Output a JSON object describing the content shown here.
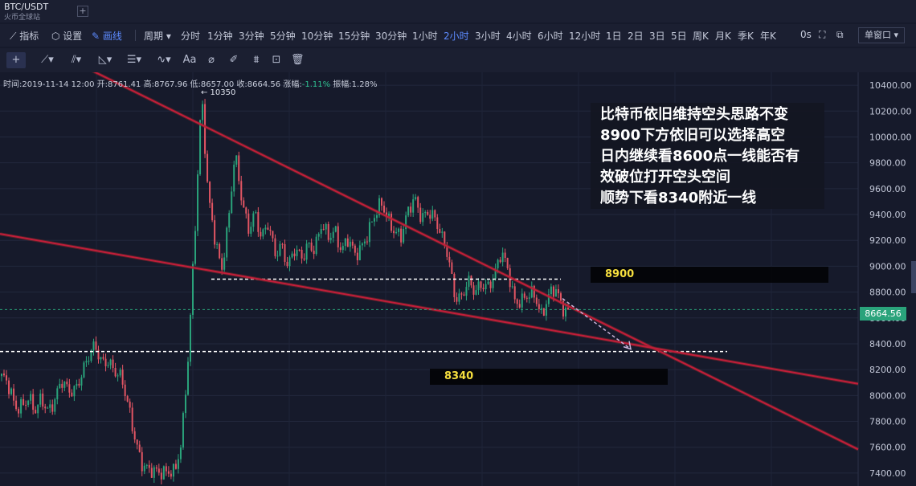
{
  "header": {
    "symbol": "BTC/USDT",
    "exchange": "火币全球站",
    "add_icon": "+"
  },
  "toolbar": {
    "indicator": "指标",
    "settings": "设置",
    "draw": "画线",
    "period": "周期",
    "intervals": [
      "分时",
      "1分钟",
      "3分钟",
      "5分钟",
      "10分钟",
      "15分钟",
      "30分钟",
      "1小时",
      "2小时",
      "3小时",
      "4小时",
      "6小时",
      "12小时",
      "1日",
      "2日",
      "3日",
      "5日",
      "周K",
      "月K",
      "季K",
      "年K"
    ],
    "active_interval": "2小时",
    "countdown": "0s",
    "window_mode": "单窗口"
  },
  "drawing_tools": [
    "crosshair-icon",
    "line-icon",
    "channel-icon",
    "fib-icon",
    "horizontal-icon",
    "wave-icon",
    "text-icon",
    "ruler-icon",
    "brush-icon",
    "pattern-icon",
    "lock-icon",
    "trash-icon"
  ],
  "drawing_text_tool": "Aa",
  "ohlc_info": {
    "time": "时间:2019-11-14 12:00",
    "open": "开:8761.41",
    "high": "高:8767.96",
    "low": "低:8657.00",
    "close": "收:8664.56",
    "change_label": "涨幅:",
    "change": "-1.11%",
    "amplitude": "振幅:1.28%"
  },
  "annotation": {
    "lines": [
      "比特币依旧维持空头思路不变",
      "8900下方依旧可以选择高空",
      "日内继续看8600点一线能否有",
      "效破位打开空头空间",
      "顺势下看8340附近一线"
    ]
  },
  "labels": {
    "upper_level": "8900",
    "lower_level": "8340",
    "peak": "← 10350"
  },
  "current_price": "8664.56",
  "colors": {
    "background": "#161a2b",
    "up": "#2aa37b",
    "down": "#e25563",
    "trendline": "#c21d3a",
    "tagline": "#f6df3e"
  },
  "chart_data": {
    "type": "candlestick",
    "symbol": "BTC/USDT",
    "interval": "2小时",
    "ylim": [
      7300,
      10500
    ],
    "yticks": [
      7400,
      7600,
      7800,
      8000,
      8200,
      8400,
      8600,
      8800,
      9000,
      9200,
      9400,
      9600,
      9800,
      10000,
      10200,
      10400
    ],
    "price_path": [
      8150,
      8050,
      7900,
      7950,
      8000,
      7850,
      7950,
      7900,
      8000,
      8100,
      8000,
      8050,
      8200,
      8300,
      8350,
      8250,
      8300,
      8200,
      8100,
      7900,
      7700,
      7500,
      7400,
      7380,
      7420,
      7450,
      7400,
      7600,
      8300,
      9300,
      10350,
      9500,
      9200,
      9000,
      9350,
      9850,
      9500,
      9300,
      9450,
      9200,
      9300,
      9100,
      9200,
      9000,
      9100,
      9050,
      9200,
      9150,
      9300,
      9200,
      9300,
      9150,
      9200,
      9050,
      9150,
      9300,
      9400,
      9450,
      9350,
      9300,
      9250,
      9400,
      9500,
      9400,
      9450,
      9350,
      9200,
      9100,
      8800,
      8750,
      8850,
      8800,
      8900,
      8850,
      8900,
      9100,
      9000,
      8750,
      8700,
      8750,
      8800,
      8650,
      8750,
      8800,
      8700,
      8665
    ],
    "peak_label": 10350,
    "last_price": 8664.56,
    "horizontal_levels": [
      {
        "price": 8900,
        "label": "8900"
      },
      {
        "price": 8340,
        "label": "8340"
      }
    ],
    "trend_lines": [
      {
        "points": [
          [
            0.105,
            10520
          ],
          [
            0.94,
            7780
          ]
        ]
      },
      {
        "points": [
          [
            0.0,
            9250
          ],
          [
            0.94,
            8160
          ]
        ]
      }
    ],
    "projection": {
      "from": [
        0.62,
        8750
      ],
      "to": [
        0.69,
        8340
      ]
    },
    "grid": true,
    "legend": "none"
  }
}
